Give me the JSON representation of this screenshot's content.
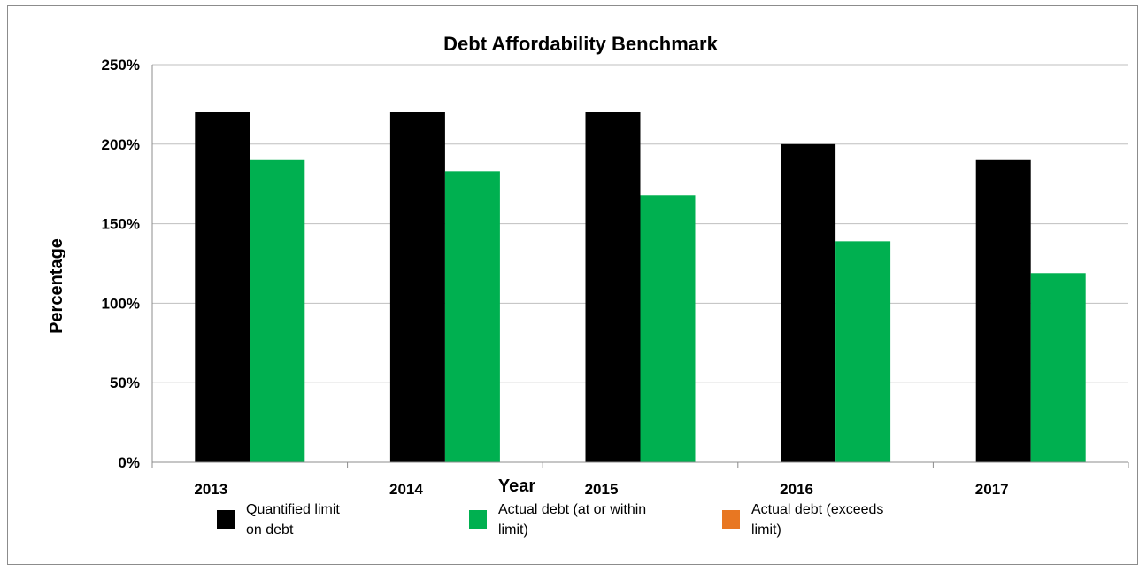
{
  "chart_data": {
    "type": "bar",
    "title": "Debt Affordability Benchmark",
    "xlabel": "Year",
    "ylabel": "Percentage",
    "categories": [
      "2013",
      "2014",
      "2015",
      "2016",
      "2017"
    ],
    "y_ticks": [
      "0%",
      "50%",
      "100%",
      "150%",
      "200%",
      "250%"
    ],
    "ylim": [
      0,
      250
    ],
    "grid": true,
    "legend_position": "bottom",
    "series": [
      {
        "name": "Quantified limit on debt",
        "color": "#000000",
        "values": [
          220,
          220,
          220,
          200,
          190
        ]
      },
      {
        "name": "Actual debt (at or within limit)",
        "color": "#00b050",
        "values": [
          190,
          183,
          168,
          139,
          119
        ]
      },
      {
        "name": "Actual debt (exceeds limit)",
        "color": "#e87722",
        "values": [
          null,
          null,
          null,
          null,
          null
        ]
      }
    ]
  }
}
